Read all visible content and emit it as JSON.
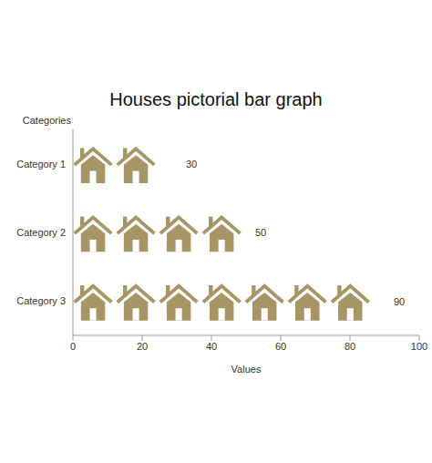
{
  "chart_data": {
    "type": "bar",
    "title": "Houses pictorial bar graph",
    "orientation": "horizontal",
    "x_label": "Values",
    "y_label": "Categories",
    "categories": [
      "Category 1",
      "Category 2",
      "Category 3"
    ],
    "values": [
      30,
      50,
      90
    ],
    "color": "#a89565",
    "xlim": [
      0,
      100
    ],
    "xticks": [
      0,
      20,
      40,
      60,
      80,
      100
    ],
    "data_labels": true,
    "grid": false
  }
}
